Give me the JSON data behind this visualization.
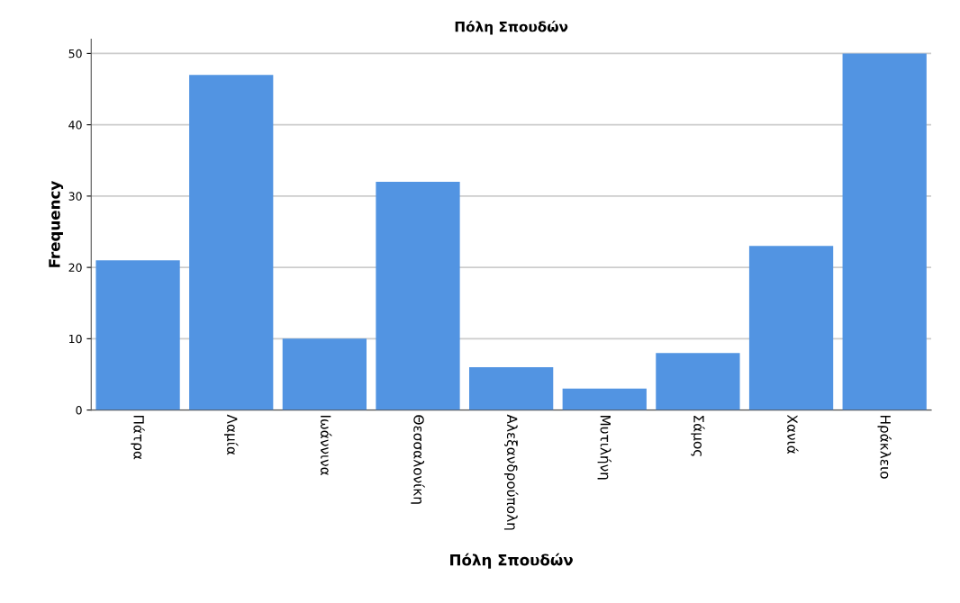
{
  "chart_data": {
    "type": "bar",
    "title": "Πόλη Σπουδών",
    "xlabel": "Πόλη Σπουδών",
    "ylabel": "Frequency",
    "categories": [
      "Πάτρα",
      "Λαμία",
      "Ιωάννινα",
      "Θεσσαλονίκη",
      "Αλεξανδρούπολη",
      "Μυτιλήνη",
      "Σάμος",
      "Χανιά",
      "Ηράκλειο"
    ],
    "values": [
      21,
      47,
      10,
      32,
      6,
      3,
      8,
      23,
      50
    ],
    "color": "#5294e2",
    "ylim": [
      0,
      52
    ],
    "yticks": [
      0,
      10,
      20,
      30,
      40,
      50
    ],
    "grid": "y"
  }
}
